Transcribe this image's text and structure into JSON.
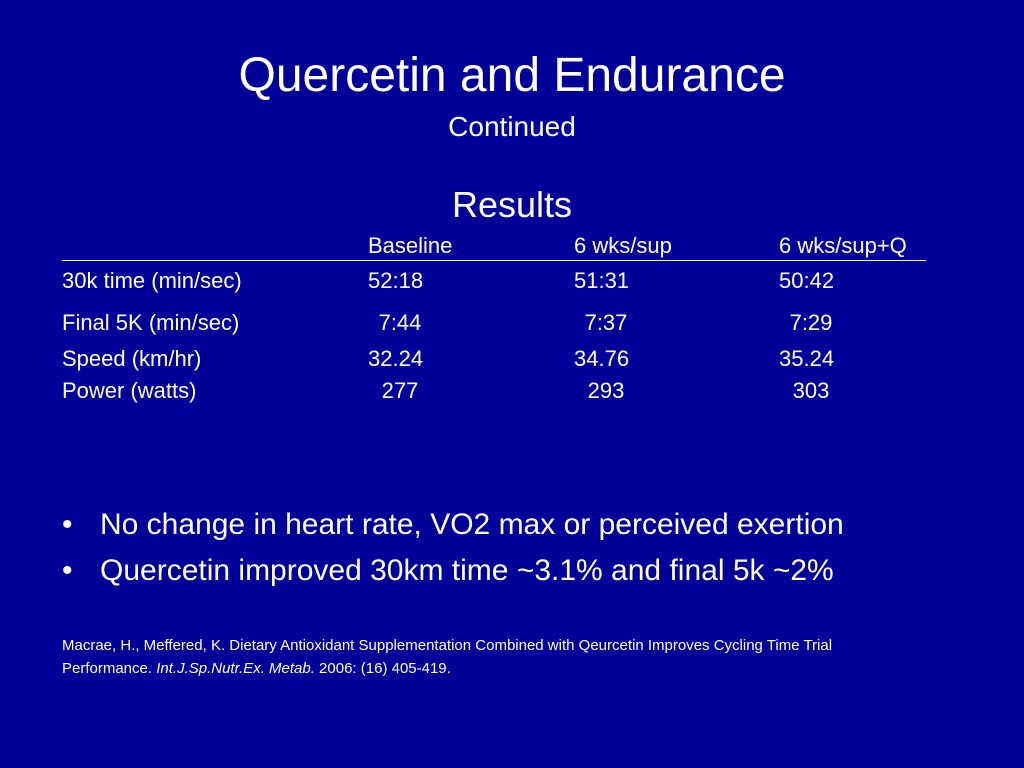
{
  "slide": {
    "title": "Quercetin and Endurance",
    "subtitle": "Continued",
    "section_heading": "Results",
    "background_color": "#000099",
    "text_color": "#ffffff"
  },
  "table": {
    "headers": [
      "",
      "Baseline",
      "6 wks/sup",
      "6 wks/sup+Q"
    ],
    "rows": [
      {
        "label": "30k time (min/sec)",
        "values": [
          "52:18",
          "51:31",
          "50:42"
        ]
      },
      {
        "label": "Final 5K (min/sec)",
        "values": [
          "7:44",
          "7:37",
          "7:29"
        ]
      },
      {
        "label": "Speed (km/hr)",
        "values": [
          "32.24",
          "34.76",
          "35.24"
        ]
      },
      {
        "label": "Power (watts)",
        "values": [
          "277",
          "293",
          "303"
        ]
      }
    ]
  },
  "bullets": [
    {
      "mark": "•",
      "text": "No change in heart rate, VO2 max or perceived exertion"
    },
    {
      "mark": "•",
      "text": "Quercetin improved 30km time ~3.1% and final 5k ~2%"
    }
  ],
  "citation": {
    "line1": "Macrae, H., Meffered, K. Dietary Antioxidant Supplementation Combined with Qeurcetin Improves Cycling Time Trial",
    "prefix": "Performance. ",
    "journal": "Int.J.Sp.Nutr.Ex. Metab.",
    "suffix": " 2006: (16) 405-419."
  }
}
